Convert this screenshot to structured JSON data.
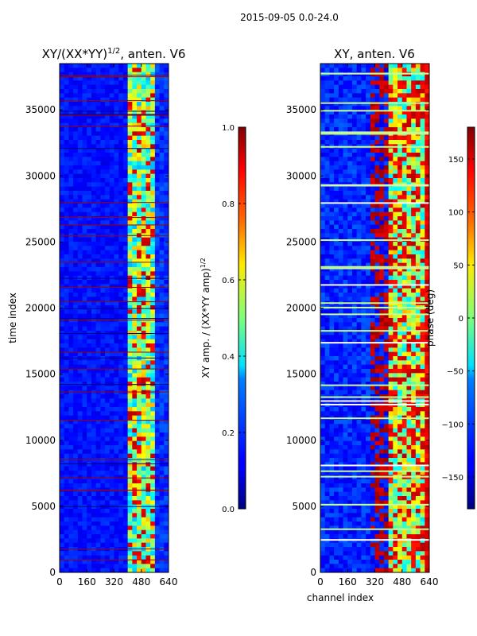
{
  "suptitle": "2015-09-05 0.0-24.0",
  "chart_data": [
    {
      "type": "heatmap",
      "title_main": "XY/(XX*YY)",
      "title_exp": "1/2",
      "title_rest": ", anten. V6",
      "xlabel": "",
      "ylabel": "time index",
      "xlim": [
        0,
        640
      ],
      "ylim": [
        0,
        38500
      ],
      "xticks": [
        0,
        160,
        320,
        480,
        640
      ],
      "yticks": [
        0,
        5000,
        10000,
        15000,
        20000,
        25000,
        30000,
        35000
      ],
      "colorbar": {
        "label_main": "XY amp. / (XX*YY amp)",
        "label_exp": "1/2",
        "range": [
          0.0,
          1.0
        ],
        "ticks": [
          "0.0",
          "0.2",
          "0.4",
          "0.6",
          "0.8",
          "1.0"
        ]
      }
    },
    {
      "type": "heatmap",
      "title_main": "XY, anten. V6",
      "xlabel": "channel index",
      "ylabel": "",
      "xlim": [
        0,
        640
      ],
      "ylim": [
        0,
        38500
      ],
      "xticks": [
        0,
        160,
        320,
        480,
        640
      ],
      "yticks": [
        0,
        5000,
        10000,
        15000,
        20000,
        25000,
        30000,
        35000
      ],
      "colorbar": {
        "label_main": "phase (deg)",
        "range": [
          -180,
          180
        ],
        "ticks": [
          "−150",
          "−100",
          "−50",
          "0",
          "50",
          "100",
          "150"
        ]
      }
    }
  ]
}
